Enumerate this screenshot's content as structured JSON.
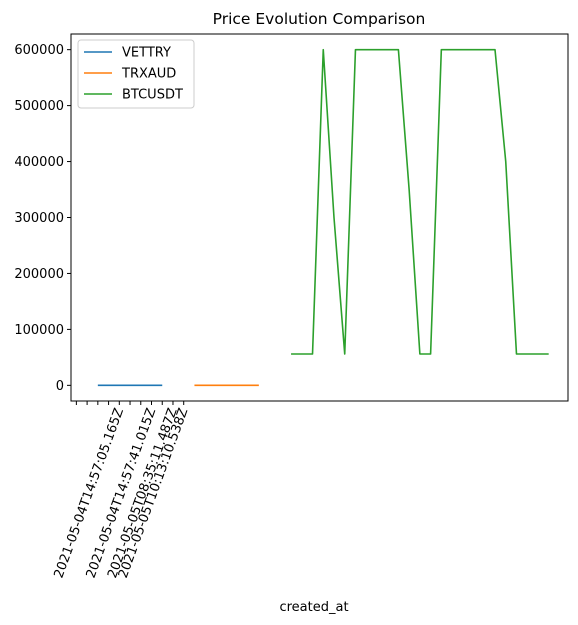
{
  "chart_data": {
    "type": "line",
    "title": "Price Evolution Comparison",
    "xlabel": "created_at",
    "ylabel": "",
    "ylim": [
      -28000,
      628000
    ],
    "yticks": [
      0,
      100000,
      200000,
      300000,
      400000,
      500000,
      600000
    ],
    "ytick_labels": [
      "0",
      "100000",
      "200000",
      "300000",
      "400000",
      "500000",
      "600000"
    ],
    "x_count": 44,
    "xlim": [
      -0.5,
      45.8
    ],
    "xtick_positions": [
      0,
      1,
      2,
      3,
      4,
      5,
      6,
      7,
      8,
      9,
      10
    ],
    "xtick_labels": [
      "",
      "",
      "",
      "",
      "2021-05-04T14:57:05.165Z",
      "",
      "",
      "2021-05-04T14:57:41.015Z",
      "",
      "2021-05-05T08:35:11.487Z",
      "2021-05-05T10:13:10.538Z"
    ],
    "legend_position": "upper-left",
    "grid": false,
    "series": [
      {
        "name": "VETTRY",
        "color": "#1f77b4",
        "x": [
          2,
          3,
          4,
          5,
          6,
          7,
          8
        ],
        "values": [
          0.5,
          0.5,
          0.5,
          0.5,
          0.5,
          0.5,
          0.5
        ]
      },
      {
        "name": "TRXAUD",
        "color": "#ff7f0e",
        "x": [
          11,
          12,
          13,
          14,
          15,
          16,
          17
        ],
        "values": [
          0.7,
          0.7,
          0.7,
          0.7,
          0.7,
          0.7,
          0.7
        ]
      },
      {
        "name": "BTCUSDT",
        "color": "#2ca02c",
        "x": [
          20,
          21,
          22,
          23,
          24,
          25,
          26,
          27,
          28,
          29,
          30,
          31,
          32,
          33,
          34,
          35,
          36,
          37,
          38,
          39,
          40,
          41,
          42,
          43,
          44
        ],
        "values": [
          56000,
          56000,
          56000,
          600000,
          300000,
          56000,
          600000,
          600000,
          600000,
          600000,
          600000,
          350000,
          56000,
          56000,
          600000,
          600000,
          600000,
          600000,
          600000,
          600000,
          400000,
          56000,
          56000,
          56000,
          56000
        ]
      }
    ]
  }
}
